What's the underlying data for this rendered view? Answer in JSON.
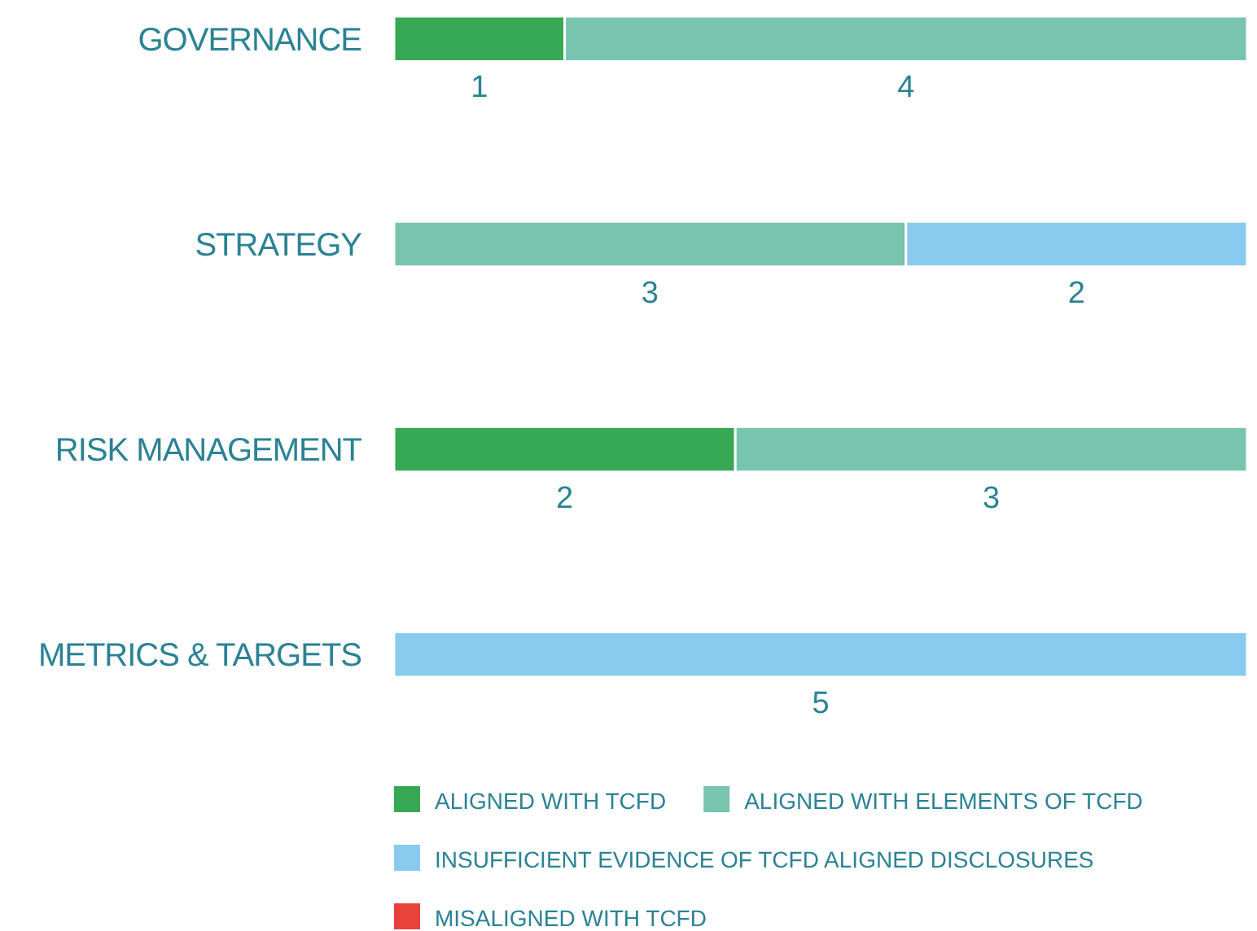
{
  "chart_data": {
    "type": "bar",
    "orientation": "horizontal",
    "stacked": true,
    "categories": [
      "GOVERNANCE",
      "STRATEGY",
      "RISK MANAGEMENT",
      "METRICS & TARGETS"
    ],
    "series": [
      {
        "name": "ALIGNED WITH TCFD",
        "color": "#37a853",
        "values": [
          1,
          0,
          2,
          0
        ],
        "value_labels": [
          "1",
          null,
          "2",
          null
        ]
      },
      {
        "name": "ALIGNED WITH ELEMENTS OF TCFD",
        "color": "#79c4ae",
        "values": [
          4,
          3,
          3,
          0
        ],
        "value_labels": [
          "4",
          "3",
          "3",
          null
        ]
      },
      {
        "name": "INSUFFICIENT EVIDENCE OF TCFD ALIGNED DISCLOSURES",
        "color": "#88cbee",
        "values": [
          0,
          2,
          0,
          5
        ],
        "value_labels": [
          null,
          "2",
          null,
          "5"
        ]
      },
      {
        "name": "MISALIGNED WITH TCFD",
        "color": "#e8423a",
        "values": [
          0,
          0,
          0,
          0
        ],
        "value_labels": [
          null,
          null,
          null,
          null
        ]
      }
    ],
    "legend": "bottom",
    "tick_labels": "y"
  }
}
